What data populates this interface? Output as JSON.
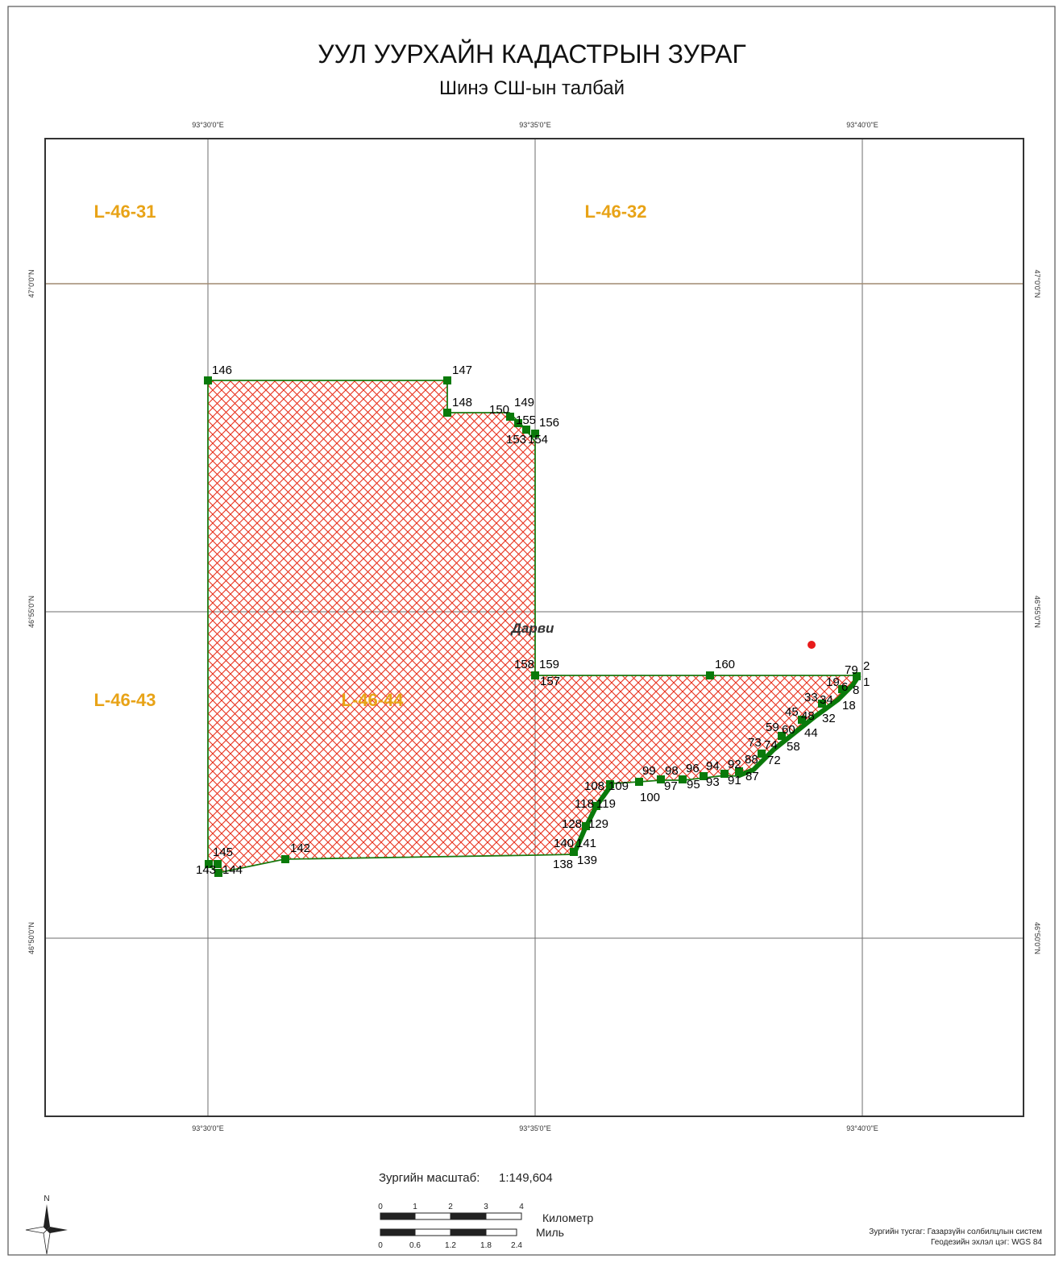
{
  "title": "УУЛ УУРХАЙН КАДАСТРЫН ЗУРАГ",
  "subtitle": "Шинэ СШ-ын талбай",
  "longitude_labels": [
    "93°30'0\"E",
    "93°35'0\"E",
    "93°40'0\"E"
  ],
  "latitude_labels": [
    "47°0'0\"N",
    "46°55'0\"N",
    "46°50'0\"N"
  ],
  "sheet_labels": [
    "L-46-31",
    "L-46-32",
    "L-46-43",
    "L-46-44"
  ],
  "place_name": "Дарви",
  "points": [
    {
      "label": "146"
    },
    {
      "label": "147"
    },
    {
      "label": "148"
    },
    {
      "label": "150"
    },
    {
      "label": "149"
    },
    {
      "label": "155"
    },
    {
      "label": "156"
    },
    {
      "label": "153"
    },
    {
      "label": "154"
    },
    {
      "label": "158"
    },
    {
      "label": "159"
    },
    {
      "label": "157"
    },
    {
      "label": "160"
    },
    {
      "label": "79"
    },
    {
      "label": "2"
    },
    {
      "label": "19"
    },
    {
      "label": "6"
    },
    {
      "label": "1"
    },
    {
      "label": "8"
    },
    {
      "label": "33"
    },
    {
      "label": "34"
    },
    {
      "label": "18"
    },
    {
      "label": "45"
    },
    {
      "label": "48"
    },
    {
      "label": "32"
    },
    {
      "label": "59"
    },
    {
      "label": "60"
    },
    {
      "label": "44"
    },
    {
      "label": "73"
    },
    {
      "label": "74"
    },
    {
      "label": "58"
    },
    {
      "label": "92"
    },
    {
      "label": "88"
    },
    {
      "label": "72"
    },
    {
      "label": "87"
    },
    {
      "label": "91"
    },
    {
      "label": "99"
    },
    {
      "label": "98"
    },
    {
      "label": "96"
    },
    {
      "label": "94"
    },
    {
      "label": "93"
    },
    {
      "label": "95"
    },
    {
      "label": "97"
    },
    {
      "label": "100"
    },
    {
      "label": "108"
    },
    {
      "label": "109"
    },
    {
      "label": "118"
    },
    {
      "label": "119"
    },
    {
      "label": "128"
    },
    {
      "label": "129"
    },
    {
      "label": "140"
    },
    {
      "label": "141"
    },
    {
      "label": "138"
    },
    {
      "label": "139"
    },
    {
      "label": "145"
    },
    {
      "label": "143"
    },
    {
      "label": "144"
    },
    {
      "label": "142"
    }
  ],
  "scale": {
    "label": "Зургийн масштаб:",
    "value": "1:149,604",
    "km_ticks": [
      "0",
      "1",
      "2",
      "3",
      "4"
    ],
    "km_unit": "Километр",
    "mile_ticks": [
      "0",
      "0.6",
      "1.2",
      "1.8",
      "2.4"
    ],
    "mile_unit": "Миль"
  },
  "north_arrow": {
    "label": "N"
  },
  "footer": {
    "line1": "Зургийн тусгаг: Газарзүйн солбилцлын систем",
    "line2": "Геодезийн эхлэл цэг: WGS 84"
  },
  "colors": {
    "polygon_outline": "#1a7a10",
    "hatch": "#e8301c",
    "vertex": "#0a7a0a",
    "sheet_label": "#e8a317",
    "graticule": "#6e6e6e",
    "sheet_boundary": "#a08a70",
    "marker": "#e81b1b"
  }
}
